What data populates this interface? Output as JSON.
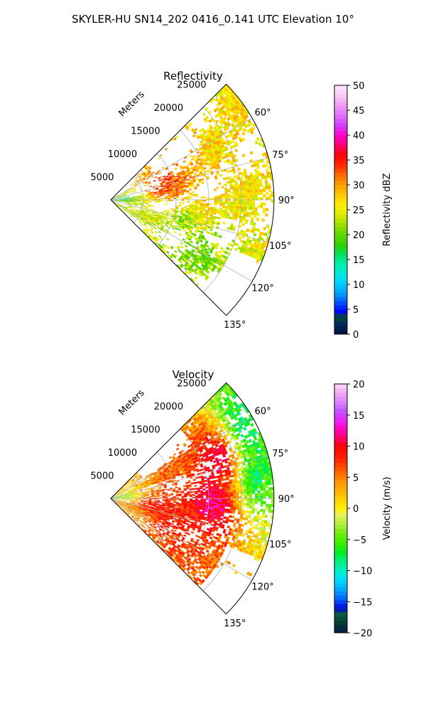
{
  "figure": {
    "title": "SKYLER-HU  SN14_202  0416_0.141 UTC Elevation 10°"
  },
  "chart_data": [
    {
      "type": "heatmap",
      "projection": "polar-sector",
      "title": "Reflectivity",
      "range_label": "Meters",
      "range_max": 25000,
      "range_ticks": [
        5000,
        10000,
        15000,
        20000,
        25000
      ],
      "range_tick_labels": [
        "5000",
        "10000",
        "15000",
        "20000",
        "25000"
      ],
      "azimuth_range": [
        45,
        135
      ],
      "azimuth_ticks": [
        60,
        75,
        90,
        105,
        120,
        135
      ],
      "azimuth_tick_labels": [
        "60°",
        "75°",
        "90°",
        "105°",
        "120°",
        "135°"
      ],
      "grid": true,
      "colorbar": {
        "label": "Reflectivity dBZ",
        "min": 0,
        "max": 50,
        "ticks": [
          0,
          5,
          10,
          15,
          20,
          25,
          30,
          35,
          40,
          45,
          50
        ],
        "tick_labels": [
          "0",
          "5",
          "10",
          "15",
          "20",
          "25",
          "30",
          "35",
          "40",
          "45",
          "50"
        ],
        "colormap": "pyart_NWSRef"
      },
      "features": [
        {
          "az": 80,
          "range": 8500,
          "value": 36
        },
        {
          "az": 72,
          "range": 8200,
          "value": 35
        },
        {
          "az": 93,
          "range": 14000,
          "value": 28
        },
        {
          "az": 88,
          "range": 20500,
          "value": 26
        },
        {
          "az": 62,
          "range": 21000,
          "value": 27
        },
        {
          "az": 95,
          "range": 7000,
          "value": 24
        },
        {
          "az": 105,
          "range": 11000,
          "value": 20
        },
        {
          "az": 118,
          "range": 16000,
          "value": 19
        },
        {
          "az": 84,
          "range": 1500,
          "value": 13
        }
      ]
    },
    {
      "type": "heatmap",
      "projection": "polar-sector",
      "title": "Velocity",
      "range_label": "Meters",
      "range_max": 25000,
      "range_ticks": [
        5000,
        10000,
        15000,
        20000,
        25000
      ],
      "range_tick_labels": [
        "5000",
        "10000",
        "15000",
        "20000",
        "25000"
      ],
      "azimuth_range": [
        45,
        135
      ],
      "azimuth_ticks": [
        60,
        75,
        90,
        105,
        120,
        135
      ],
      "azimuth_tick_labels": [
        "60°",
        "75°",
        "90°",
        "105°",
        "120°",
        "135°"
      ],
      "grid": true,
      "colorbar": {
        "label": "Velocity (m/s)",
        "min": -20,
        "max": 20,
        "ticks": [
          -20,
          -15,
          -10,
          -5,
          0,
          5,
          10,
          15,
          20
        ],
        "tick_labels": [
          "−20",
          "−15",
          "−10",
          "−5",
          "0",
          "5",
          "10",
          "15",
          "20"
        ],
        "colormap": "pyart_BuDRd18"
      },
      "features": [
        {
          "az": 70,
          "range": 18000,
          "value": 14
        },
        {
          "az": 62,
          "range": 23000,
          "value": -10
        },
        {
          "az": 82,
          "range": 22000,
          "value": -10
        },
        {
          "az": 93,
          "range": 16000,
          "value": 14
        },
        {
          "az": 100,
          "range": 7000,
          "value": 10
        },
        {
          "az": 112,
          "range": 9000,
          "value": 9
        },
        {
          "az": 120,
          "range": 5000,
          "value": 3
        },
        {
          "az": 85,
          "range": 1500,
          "value": -5
        }
      ]
    }
  ]
}
